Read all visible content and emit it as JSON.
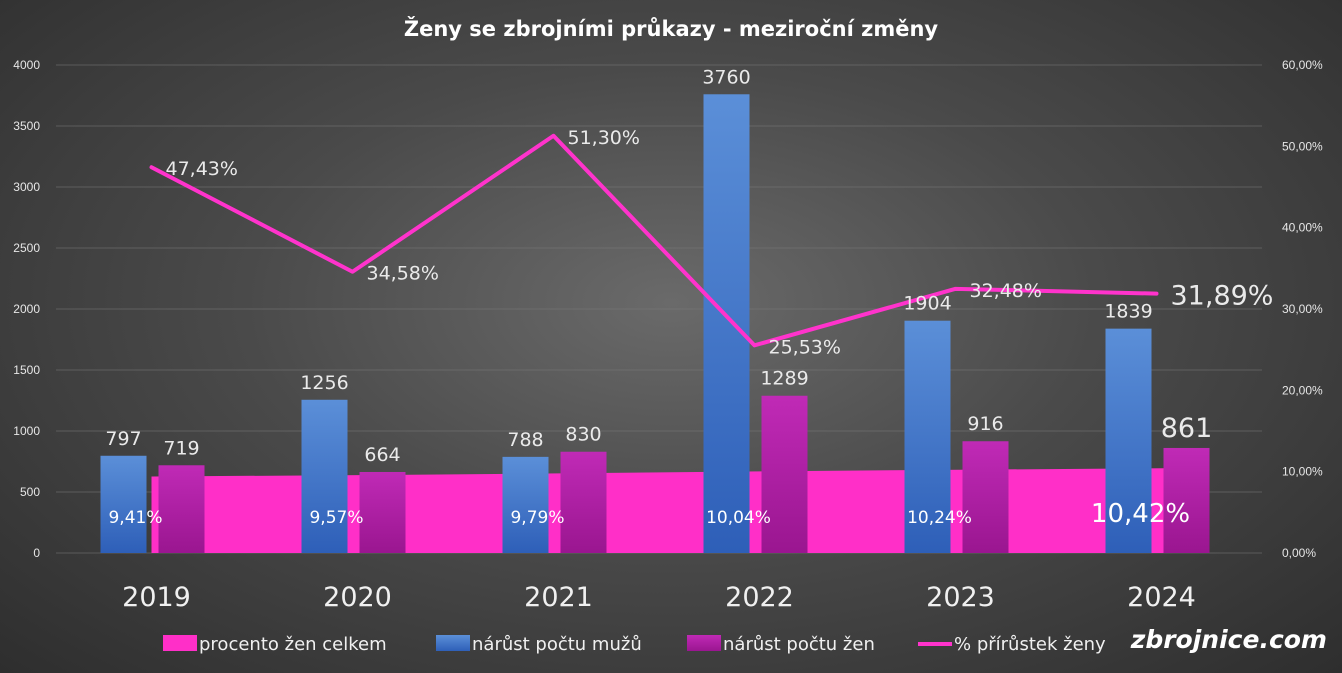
{
  "chart_data": {
    "type": "bar",
    "title": "Ženy se zbrojními průkazy - meziroční změny",
    "categories": [
      "2019",
      "2020",
      "2021",
      "2022",
      "2023",
      "2024"
    ],
    "y_left": {
      "min": 0,
      "max": 4000,
      "step": 500,
      "ticks": [
        "0",
        "500",
        "1000",
        "1500",
        "2000",
        "2500",
        "3000",
        "3500",
        "4000"
      ]
    },
    "y_right": {
      "min": 0,
      "max": 60,
      "step": 10,
      "ticks": [
        "0,00%",
        "10,00%",
        "20,00%",
        "30,00%",
        "40,00%",
        "50,00%",
        "60,00%"
      ]
    },
    "grid": true,
    "legend_position": "bottom",
    "series": [
      {
        "name": "procento žen celkem",
        "kind": "area",
        "axis": "right",
        "color": "#ff2fc8",
        "values": [
          9.41,
          9.57,
          9.79,
          10.04,
          10.24,
          10.42
        ],
        "labels": [
          "9,41%",
          "9,57%",
          "9,79%",
          "10,04%",
          "10,24%",
          "10,42%"
        ]
      },
      {
        "name": "nárůst počtu mužů",
        "kind": "bar",
        "axis": "left",
        "color": "#4a7fd0",
        "values": [
          797,
          1256,
          788,
          3760,
          1904,
          1839
        ],
        "labels": [
          "797",
          "1256",
          "788",
          "3760",
          "1904",
          "1839"
        ]
      },
      {
        "name": "nárůst počtu žen",
        "kind": "bar",
        "axis": "left",
        "color": "#b21aa8",
        "values": [
          719,
          664,
          830,
          1289,
          916,
          861
        ],
        "labels": [
          "719",
          "664",
          "830",
          "1289",
          "916",
          "861"
        ]
      },
      {
        "name": "% přírůstek ženy",
        "kind": "line",
        "axis": "right",
        "color": "#ff33cc",
        "values": [
          47.43,
          34.58,
          51.3,
          25.53,
          32.48,
          31.89
        ],
        "labels": [
          "47,43%",
          "34,58%",
          "51,30%",
          "25,53%",
          "32,48%",
          "31,89%"
        ]
      }
    ]
  },
  "watermark": "zbrojnice.com"
}
